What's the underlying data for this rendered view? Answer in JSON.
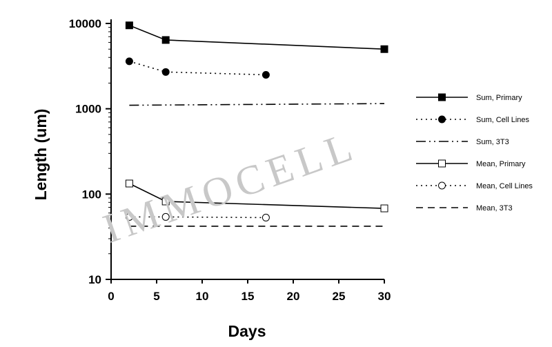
{
  "chart_data": {
    "type": "line",
    "xlabel": "Days",
    "ylabel": "Length (um)",
    "xlim": [
      0,
      30
    ],
    "ylim": [
      10,
      10000
    ],
    "yscale": "log",
    "xticks": [
      0,
      5,
      10,
      15,
      20,
      25,
      30
    ],
    "yticks": [
      10,
      100,
      1000,
      10000
    ],
    "xtick_labels": [
      "0",
      "5",
      "10",
      "15",
      "20",
      "25",
      "30"
    ],
    "ytick_labels": [
      "10",
      "100",
      "1000",
      "10000"
    ],
    "grid": false,
    "legend_position": "right",
    "series": [
      {
        "name": "Sum, Primary",
        "x": [
          2,
          6,
          30
        ],
        "y": [
          9500,
          6400,
          5000
        ],
        "line": "solid",
        "marker": "square-filled"
      },
      {
        "name": "Sum, Cell Lines",
        "x": [
          2,
          6,
          17
        ],
        "y": [
          3600,
          2700,
          2500
        ],
        "line": "dotted",
        "marker": "circle-filled"
      },
      {
        "name": "Sum, 3T3",
        "x": [
          2,
          30
        ],
        "y": [
          1100,
          1150
        ],
        "line": "dashdotdot",
        "marker": "none"
      },
      {
        "name": "Mean, Primary",
        "x": [
          2,
          6,
          30
        ],
        "y": [
          133,
          82,
          68
        ],
        "line": "solid",
        "marker": "square-open"
      },
      {
        "name": "Mean, Cell Lines",
        "x": [
          2,
          6,
          17
        ],
        "y": [
          54,
          54,
          53
        ],
        "line": "dotted",
        "marker": "circle-open"
      },
      {
        "name": "Mean, 3T3",
        "x": [
          2,
          30
        ],
        "y": [
          42,
          42
        ],
        "line": "dashed",
        "marker": "none"
      }
    ]
  },
  "watermark": "IMMOCELL"
}
